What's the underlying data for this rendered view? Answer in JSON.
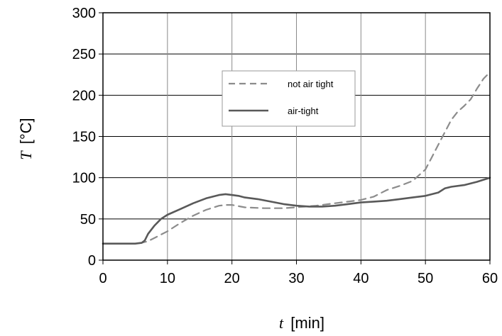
{
  "chart_data": {
    "type": "line",
    "xlabel_var": "t",
    "xlabel_unit": "[min]",
    "ylabel_var": "T",
    "ylabel_unit": "[°C]",
    "xlim": [
      0,
      60
    ],
    "ylim": [
      0,
      300
    ],
    "xticks": [
      0,
      10,
      20,
      30,
      40,
      50,
      60
    ],
    "yticks": [
      0,
      50,
      100,
      150,
      200,
      250,
      300
    ],
    "grid": true,
    "legend_position": "upper-center",
    "series": [
      {
        "name": "not air tight",
        "style": "dashed",
        "color": "#8c8c8c",
        "x": [
          0,
          2,
          4,
          5,
          6,
          7,
          8,
          10,
          12,
          14,
          16,
          18,
          19,
          20,
          22,
          25,
          28,
          30,
          33,
          36,
          40,
          42,
          44,
          46,
          48,
          50,
          51,
          52,
          53,
          54,
          55,
          56,
          57,
          58,
          59,
          60
        ],
        "y": [
          20,
          20,
          20,
          20,
          21,
          23,
          27,
          35,
          45,
          54,
          61,
          66,
          67,
          67,
          64,
          63,
          63,
          64,
          66,
          69,
          73,
          77,
          85,
          90,
          96,
          110,
          125,
          140,
          155,
          170,
          180,
          187,
          195,
          208,
          220,
          228
        ]
      },
      {
        "name": "air-tight",
        "style": "solid",
        "color": "#595959",
        "x": [
          0,
          2,
          4,
          5,
          6,
          6.5,
          7,
          8,
          9,
          10,
          12,
          14,
          16,
          18,
          19,
          20,
          21,
          22,
          24,
          26,
          28,
          30,
          32,
          34,
          36,
          38,
          40,
          42,
          44,
          46,
          48,
          50,
          52,
          53,
          54,
          56,
          58,
          60
        ],
        "y": [
          20,
          20,
          20,
          20,
          21,
          24,
          32,
          42,
          50,
          55,
          62,
          69,
          75,
          79,
          80,
          79,
          78,
          76,
          74,
          71,
          68,
          66,
          65,
          65,
          66,
          68,
          70,
          71,
          72,
          74,
          76,
          78,
          82,
          87,
          89,
          91,
          95,
          100
        ]
      }
    ]
  }
}
